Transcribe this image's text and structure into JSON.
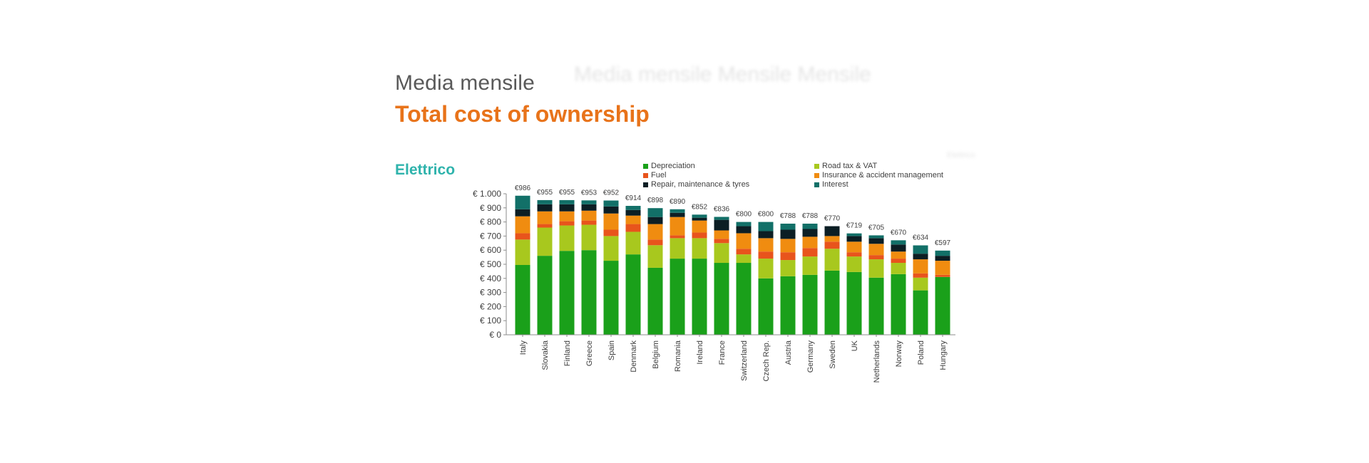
{
  "header": {
    "subtitle": "Media mensile",
    "title": "Total cost of ownership",
    "section": "Elettrico"
  },
  "chart_data": {
    "type": "bar",
    "stacked": true,
    "categories": [
      "Italy",
      "Slovakia",
      "Finland",
      "Greece",
      "Spain",
      "Denmark",
      "Belgium",
      "Romania",
      "Ireland",
      "France",
      "Switzerland",
      "Czech Rep.",
      "Austria",
      "Germany",
      "Sweden",
      "UK",
      "Netherlands",
      "Norway",
      "Poland",
      "Hungary"
    ],
    "totals": [
      986,
      955,
      955,
      953,
      952,
      914,
      898,
      890,
      852,
      836,
      800,
      800,
      788,
      788,
      770,
      719,
      705,
      670,
      634,
      597
    ],
    "total_labels": [
      "€986",
      "€955",
      "€955",
      "€953",
      "€952",
      "€914",
      "€898",
      "€890",
      "€852",
      "€836",
      "€800",
      "€800",
      "€788",
      "€788",
      "€770",
      "€719",
      "€705",
      "€670",
      "€634",
      "€597"
    ],
    "series": [
      {
        "name": "Depreciation",
        "color": "#1aa01a",
        "values": [
          495,
          560,
          595,
          600,
          525,
          570,
          475,
          540,
          540,
          510,
          510,
          400,
          415,
          425,
          455,
          445,
          405,
          430,
          315,
          410
        ]
      },
      {
        "name": "Road tax & VAT",
        "color": "#a8c81e",
        "values": [
          180,
          200,
          180,
          180,
          175,
          160,
          160,
          145,
          145,
          140,
          60,
          140,
          115,
          130,
          155,
          110,
          130,
          80,
          90,
          0
        ]
      },
      {
        "name": "Fuel",
        "color": "#e8541c",
        "values": [
          45,
          25,
          30,
          30,
          45,
          55,
          40,
          20,
          40,
          30,
          40,
          50,
          55,
          60,
          50,
          30,
          30,
          30,
          30,
          15
        ]
      },
      {
        "name": "Insurance & accident management",
        "color": "#f08c10",
        "values": [
          120,
          90,
          70,
          70,
          115,
          60,
          110,
          130,
          85,
          60,
          110,
          95,
          95,
          80,
          40,
          75,
          80,
          50,
          100,
          100
        ]
      },
      {
        "name": "Repair, maintenance & tyres",
        "color": "#0c1e24",
        "values": [
          50,
          50,
          50,
          45,
          50,
          40,
          50,
          30,
          20,
          75,
          50,
          50,
          65,
          55,
          70,
          40,
          40,
          50,
          40,
          35
        ]
      },
      {
        "name": "Interest",
        "color": "#127068",
        "values": [
          96,
          30,
          30,
          28,
          42,
          29,
          63,
          25,
          22,
          21,
          30,
          65,
          43,
          38,
          0,
          19,
          20,
          30,
          59,
          37
        ]
      }
    ],
    "ylim": [
      0,
      1000
    ],
    "yticks": [
      0,
      100,
      200,
      300,
      400,
      500,
      600,
      700,
      800,
      900,
      1000
    ],
    "ytick_labels": [
      "€ 0",
      "€ 100",
      "€ 200",
      "€ 300",
      "€ 400",
      "€ 500",
      "€ 600",
      "€ 700",
      "€ 800",
      "€ 900",
      "€ 1.000"
    ],
    "legend_position": "top",
    "grid": false
  },
  "ghost_texts": {
    "top": "Media mensile  Mensile  Mensile",
    "right": "Elettrico"
  }
}
